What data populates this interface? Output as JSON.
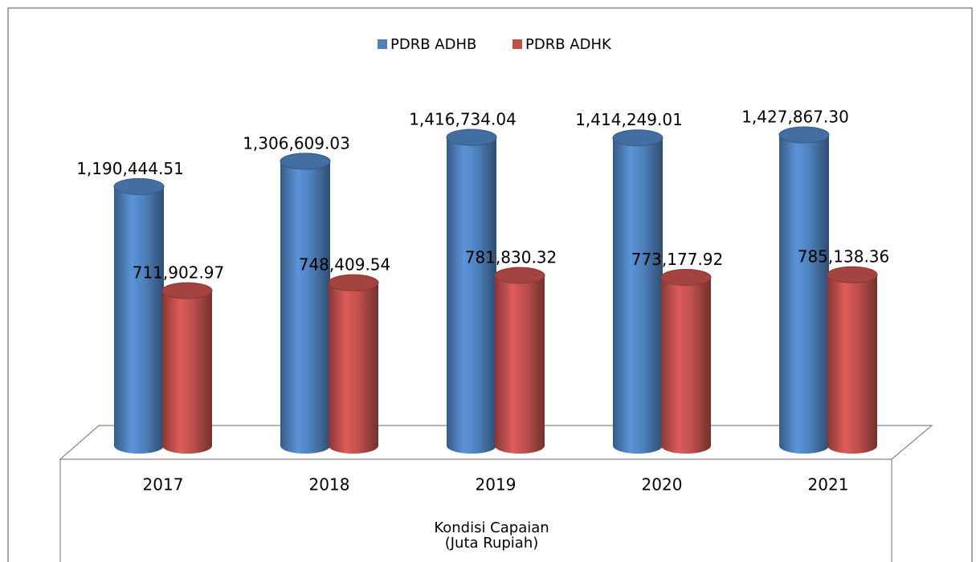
{
  "chart_data": {
    "type": "bar",
    "categories": [
      "2017",
      "2018",
      "2019",
      "2020",
      "2021"
    ],
    "x_label": [
      "Kondisi Capaian",
      "(Juta Rupiah)"
    ],
    "series": [
      {
        "name": "PDRB ADHB",
        "color": "#4f81bd",
        "values": [
          1190444.51,
          1306609.03,
          1416734.04,
          1414249.01,
          1427867.3
        ],
        "value_labels": [
          "1,190,444.51",
          "1,306,609.03",
          "1,416,734.04",
          "1,414,249.01",
          "1,427,867.30"
        ]
      },
      {
        "name": "PDRB ADHK",
        "color": "#c0504d",
        "values": [
          711902.97,
          748409.54,
          781830.32,
          773177.92,
          785138.36
        ],
        "value_labels": [
          "711,902.97",
          "748,409.54",
          "781,830.32",
          "773,177.92",
          "785,138.36"
        ]
      }
    ],
    "legend": "top"
  }
}
